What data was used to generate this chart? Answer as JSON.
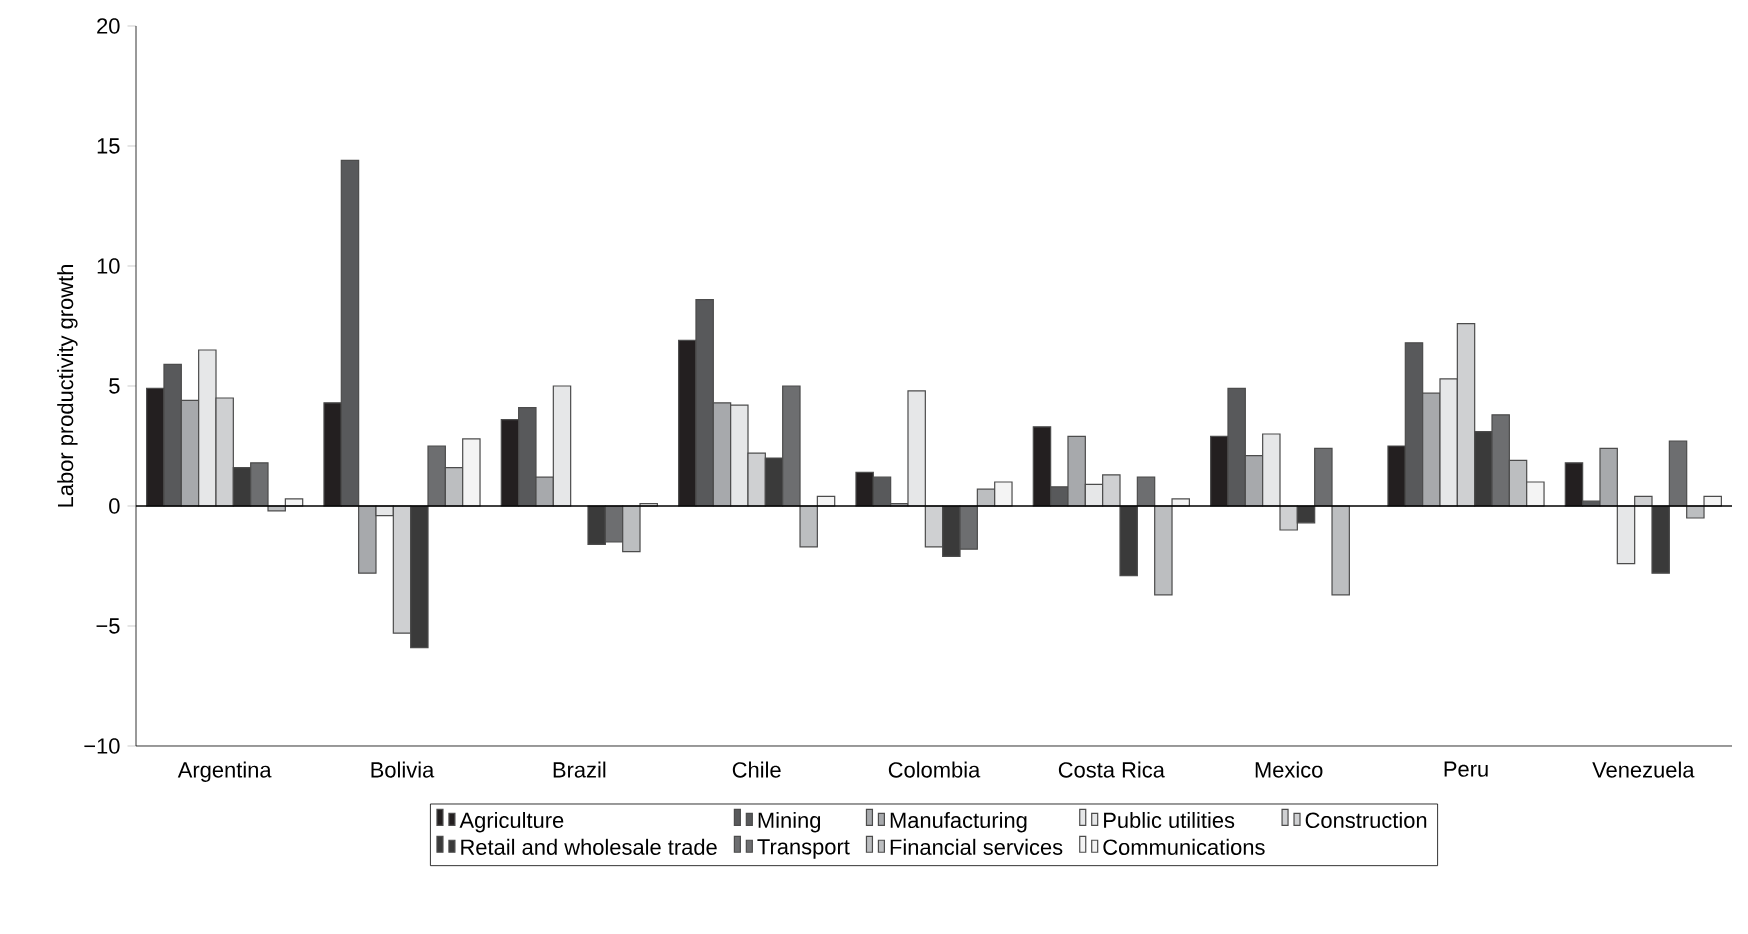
{
  "chart_data": {
    "type": "bar",
    "ylabel": "Labor productivity growth",
    "categories": [
      "Argentina",
      "Bolivia",
      "Brazil",
      "Chile",
      "Colombia",
      "Costa Rica",
      "Mexico",
      "Peru",
      "Venezuela"
    ],
    "ylim": [
      -10,
      20
    ],
    "yticks": [
      {
        "value": -10,
        "label": "−10"
      },
      {
        "value": -5,
        "label": "−5"
      },
      0,
      5,
      10,
      15,
      20
    ],
    "legend": "bottom",
    "grid": false,
    "ref_lines": [
      {
        "axis": "y",
        "value": 0,
        "color": "#000000"
      }
    ],
    "series": [
      {
        "name": "Agriculture",
        "color": "#231f20",
        "values": [
          4.9,
          4.3,
          3.6,
          6.9,
          1.4,
          3.3,
          2.9,
          2.5,
          1.8
        ]
      },
      {
        "name": "Mining",
        "color": "#58595b",
        "values": [
          5.9,
          14.4,
          4.1,
          8.6,
          1.2,
          0.8,
          4.9,
          6.8,
          0.2
        ]
      },
      {
        "name": "Manufacturing",
        "color": "#a7a9ac",
        "values": [
          4.4,
          -2.8,
          1.2,
          4.3,
          0.1,
          2.9,
          2.1,
          4.7,
          2.4
        ]
      },
      {
        "name": "Public utilities",
        "color": "#e6e7e8",
        "values": [
          6.5,
          -0.4,
          5.0,
          4.2,
          4.8,
          0.9,
          3.0,
          5.3,
          -2.4
        ]
      },
      {
        "name": "Construction",
        "color": "#cfd0d2",
        "values": [
          4.5,
          -5.3,
          null,
          2.2,
          -1.7,
          1.3,
          -1.0,
          7.6,
          0.4
        ]
      },
      {
        "name": "Retail and wholesale trade",
        "color": "#3a3a3a",
        "values": [
          1.6,
          -5.9,
          -1.6,
          2.0,
          -2.1,
          -2.9,
          -0.7,
          3.1,
          -2.8
        ]
      },
      {
        "name": "Transport",
        "color": "#6d6e70",
        "values": [
          1.8,
          2.5,
          -1.5,
          5.0,
          -1.8,
          1.2,
          2.4,
          3.8,
          2.7
        ]
      },
      {
        "name": "Financial services",
        "color": "#bcbec0",
        "values": [
          -0.2,
          1.6,
          -1.9,
          -1.7,
          0.7,
          -3.7,
          -3.7,
          1.9,
          -0.5
        ]
      },
      {
        "name": "Communications",
        "color": "#f4f4f4",
        "values": [
          0.3,
          2.8,
          0.1,
          0.4,
          1.0,
          0.3,
          null,
          1.0,
          0.4
        ]
      }
    ]
  }
}
